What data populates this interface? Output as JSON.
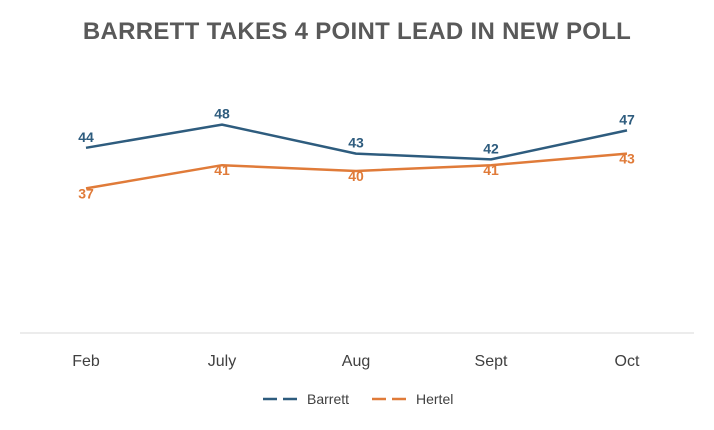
{
  "chart_data": {
    "type": "line",
    "title": "BARRETT TAKES 4 POINT LEAD IN NEW POLL",
    "categories": [
      "Feb",
      "July",
      "Aug",
      "Sept",
      "Oct"
    ],
    "series": [
      {
        "name": "Barrett",
        "values": [
          44,
          48,
          43,
          42,
          47
        ],
        "color": "#2E5C7E"
      },
      {
        "name": "Hertel",
        "values": [
          37,
          41,
          40,
          41,
          43
        ],
        "color": "#E07B39"
      }
    ],
    "legend": "bottom",
    "grid": false,
    "data_labels": true
  }
}
